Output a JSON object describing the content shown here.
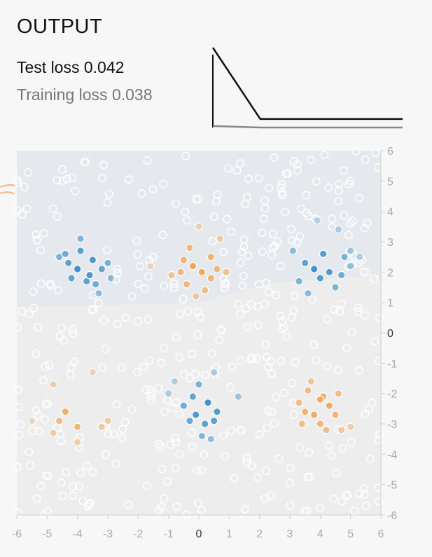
{
  "header": {
    "title": "OUTPUT",
    "test_loss_label": "Test loss",
    "test_loss_value": "0.042",
    "training_loss_label": "Training loss",
    "training_loss_value": "0.038"
  },
  "colors": {
    "positive": "#2f88c4",
    "negative": "#f0a04e",
    "background": "#f7f7f7",
    "region_positive": "#e5e9ed",
    "region_neutral": "#ededed",
    "test_loss_line": "#111111",
    "training_loss_line": "#888888"
  },
  "chart_data": [
    {
      "type": "line",
      "series": [
        {
          "values": [
            1.0,
            0.02,
            0.02,
            0.02,
            0.02
          ]
        },
        {
          "values": [
            0.02,
            0.0,
            0.0,
            0.0,
            0.0
          ]
        }
      ]
    },
    {
      "type": "scatter",
      "xlim": [
        -6,
        6
      ],
      "ylim": [
        -6,
        6
      ],
      "x_ticks": [
        "-6",
        "-5",
        "-4",
        "-3",
        "-2",
        "-1",
        "0",
        "1",
        "2",
        "3",
        "4",
        "5",
        "6"
      ],
      "y_ticks": [
        "6",
        "5",
        "4",
        "3",
        "2",
        "1",
        "0",
        "-1",
        "-2",
        "-3",
        "-4",
        "-5",
        "-6"
      ],
      "clusters": [
        {
          "label": "positive",
          "center": [
            -3.8,
            2.2
          ],
          "points": [
            [
              -3.9,
              3.1
            ],
            [
              -4.6,
              2.5
            ],
            [
              -4.3,
              2.3
            ],
            [
              -3.9,
              2.7
            ],
            [
              -4.0,
              2.1
            ],
            [
              -3.7,
              1.7
            ],
            [
              -3.5,
              2.4
            ],
            [
              -3.2,
              2.1
            ],
            [
              -3.0,
              2.3
            ],
            [
              -3.4,
              1.6
            ],
            [
              -4.4,
              2.6
            ],
            [
              -3.6,
              1.9
            ],
            [
              -3.3,
              1.3
            ],
            [
              -2.9,
              1.8
            ],
            [
              -4.2,
              1.8
            ]
          ]
        },
        {
          "label": "negative",
          "center": [
            0.0,
            2.2
          ],
          "points": [
            [
              0.0,
              3.5
            ],
            [
              -0.3,
              2.8
            ],
            [
              -0.5,
              2.4
            ],
            [
              -0.2,
              2.2
            ],
            [
              0.1,
              2.0
            ],
            [
              0.4,
              1.8
            ],
            [
              -0.6,
              2.0
            ],
            [
              -0.4,
              1.6
            ],
            [
              0.2,
              1.4
            ],
            [
              0.6,
              2.1
            ],
            [
              0.7,
              3.1
            ],
            [
              0.4,
              2.5
            ],
            [
              -0.1,
              1.2
            ],
            [
              0.9,
              2.0
            ],
            [
              -1.6,
              2.2
            ],
            [
              -0.9,
              1.9
            ]
          ]
        },
        {
          "label": "positive",
          "center": [
            4.0,
            2.2
          ],
          "points": [
            [
              4.6,
              3.4
            ],
            [
              3.1,
              2.7
            ],
            [
              3.5,
              2.3
            ],
            [
              3.8,
              2.1
            ],
            [
              4.0,
              1.8
            ],
            [
              4.3,
              2.0
            ],
            [
              4.8,
              2.5
            ],
            [
              5.0,
              2.7
            ],
            [
              4.7,
              1.9
            ],
            [
              3.3,
              1.7
            ],
            [
              4.5,
              1.5
            ],
            [
              3.6,
              1.3
            ],
            [
              4.1,
              2.6
            ],
            [
              3.9,
              3.7
            ],
            [
              5.3,
              2.5
            ],
            [
              5.0,
              2.2
            ]
          ]
        },
        {
          "label": "positive",
          "center": [
            0.2,
            -2.5
          ],
          "points": [
            [
              0.0,
              -1.7
            ],
            [
              -0.2,
              -2.1
            ],
            [
              0.3,
              -2.3
            ],
            [
              -0.1,
              -2.7
            ],
            [
              0.2,
              -3.0
            ],
            [
              -0.3,
              -2.9
            ],
            [
              0.5,
              -2.9
            ],
            [
              -0.5,
              -2.4
            ],
            [
              0.6,
              -2.6
            ],
            [
              0.1,
              -3.4
            ],
            [
              -0.8,
              -1.6
            ],
            [
              -1.0,
              -2.0
            ],
            [
              0.5,
              -1.3
            ],
            [
              1.3,
              -2.1
            ],
            [
              0.4,
              -3.5
            ]
          ]
        },
        {
          "label": "negative",
          "center": [
            4.0,
            -2.5
          ],
          "points": [
            [
              3.6,
              -1.9
            ],
            [
              4.1,
              -2.1
            ],
            [
              4.3,
              -2.4
            ],
            [
              3.8,
              -2.7
            ],
            [
              4.0,
              -3.0
            ],
            [
              4.5,
              -2.7
            ],
            [
              3.3,
              -2.3
            ],
            [
              3.5,
              -2.6
            ],
            [
              4.0,
              -2.2
            ],
            [
              4.6,
              -2.0
            ],
            [
              3.4,
              -3.0
            ],
            [
              4.2,
              -3.2
            ],
            [
              4.7,
              -3.2
            ],
            [
              5.0,
              -3.1
            ],
            [
              3.7,
              -1.6
            ]
          ]
        },
        {
          "label": "negative",
          "center": [
            -4.0,
            -2.5
          ],
          "points": [
            [
              -4.0,
              -3.1
            ],
            [
              -4.4,
              -2.6
            ],
            [
              -5.5,
              -2.9
            ],
            [
              -4.6,
              -2.9
            ],
            [
              -4.8,
              -3.3
            ],
            [
              -4.0,
              -3.6
            ],
            [
              -3.0,
              -2.9
            ],
            [
              -3.2,
              -3.1
            ],
            [
              -3.5,
              -1.3
            ],
            [
              -4.8,
              -1.7
            ]
          ]
        }
      ]
    }
  ]
}
